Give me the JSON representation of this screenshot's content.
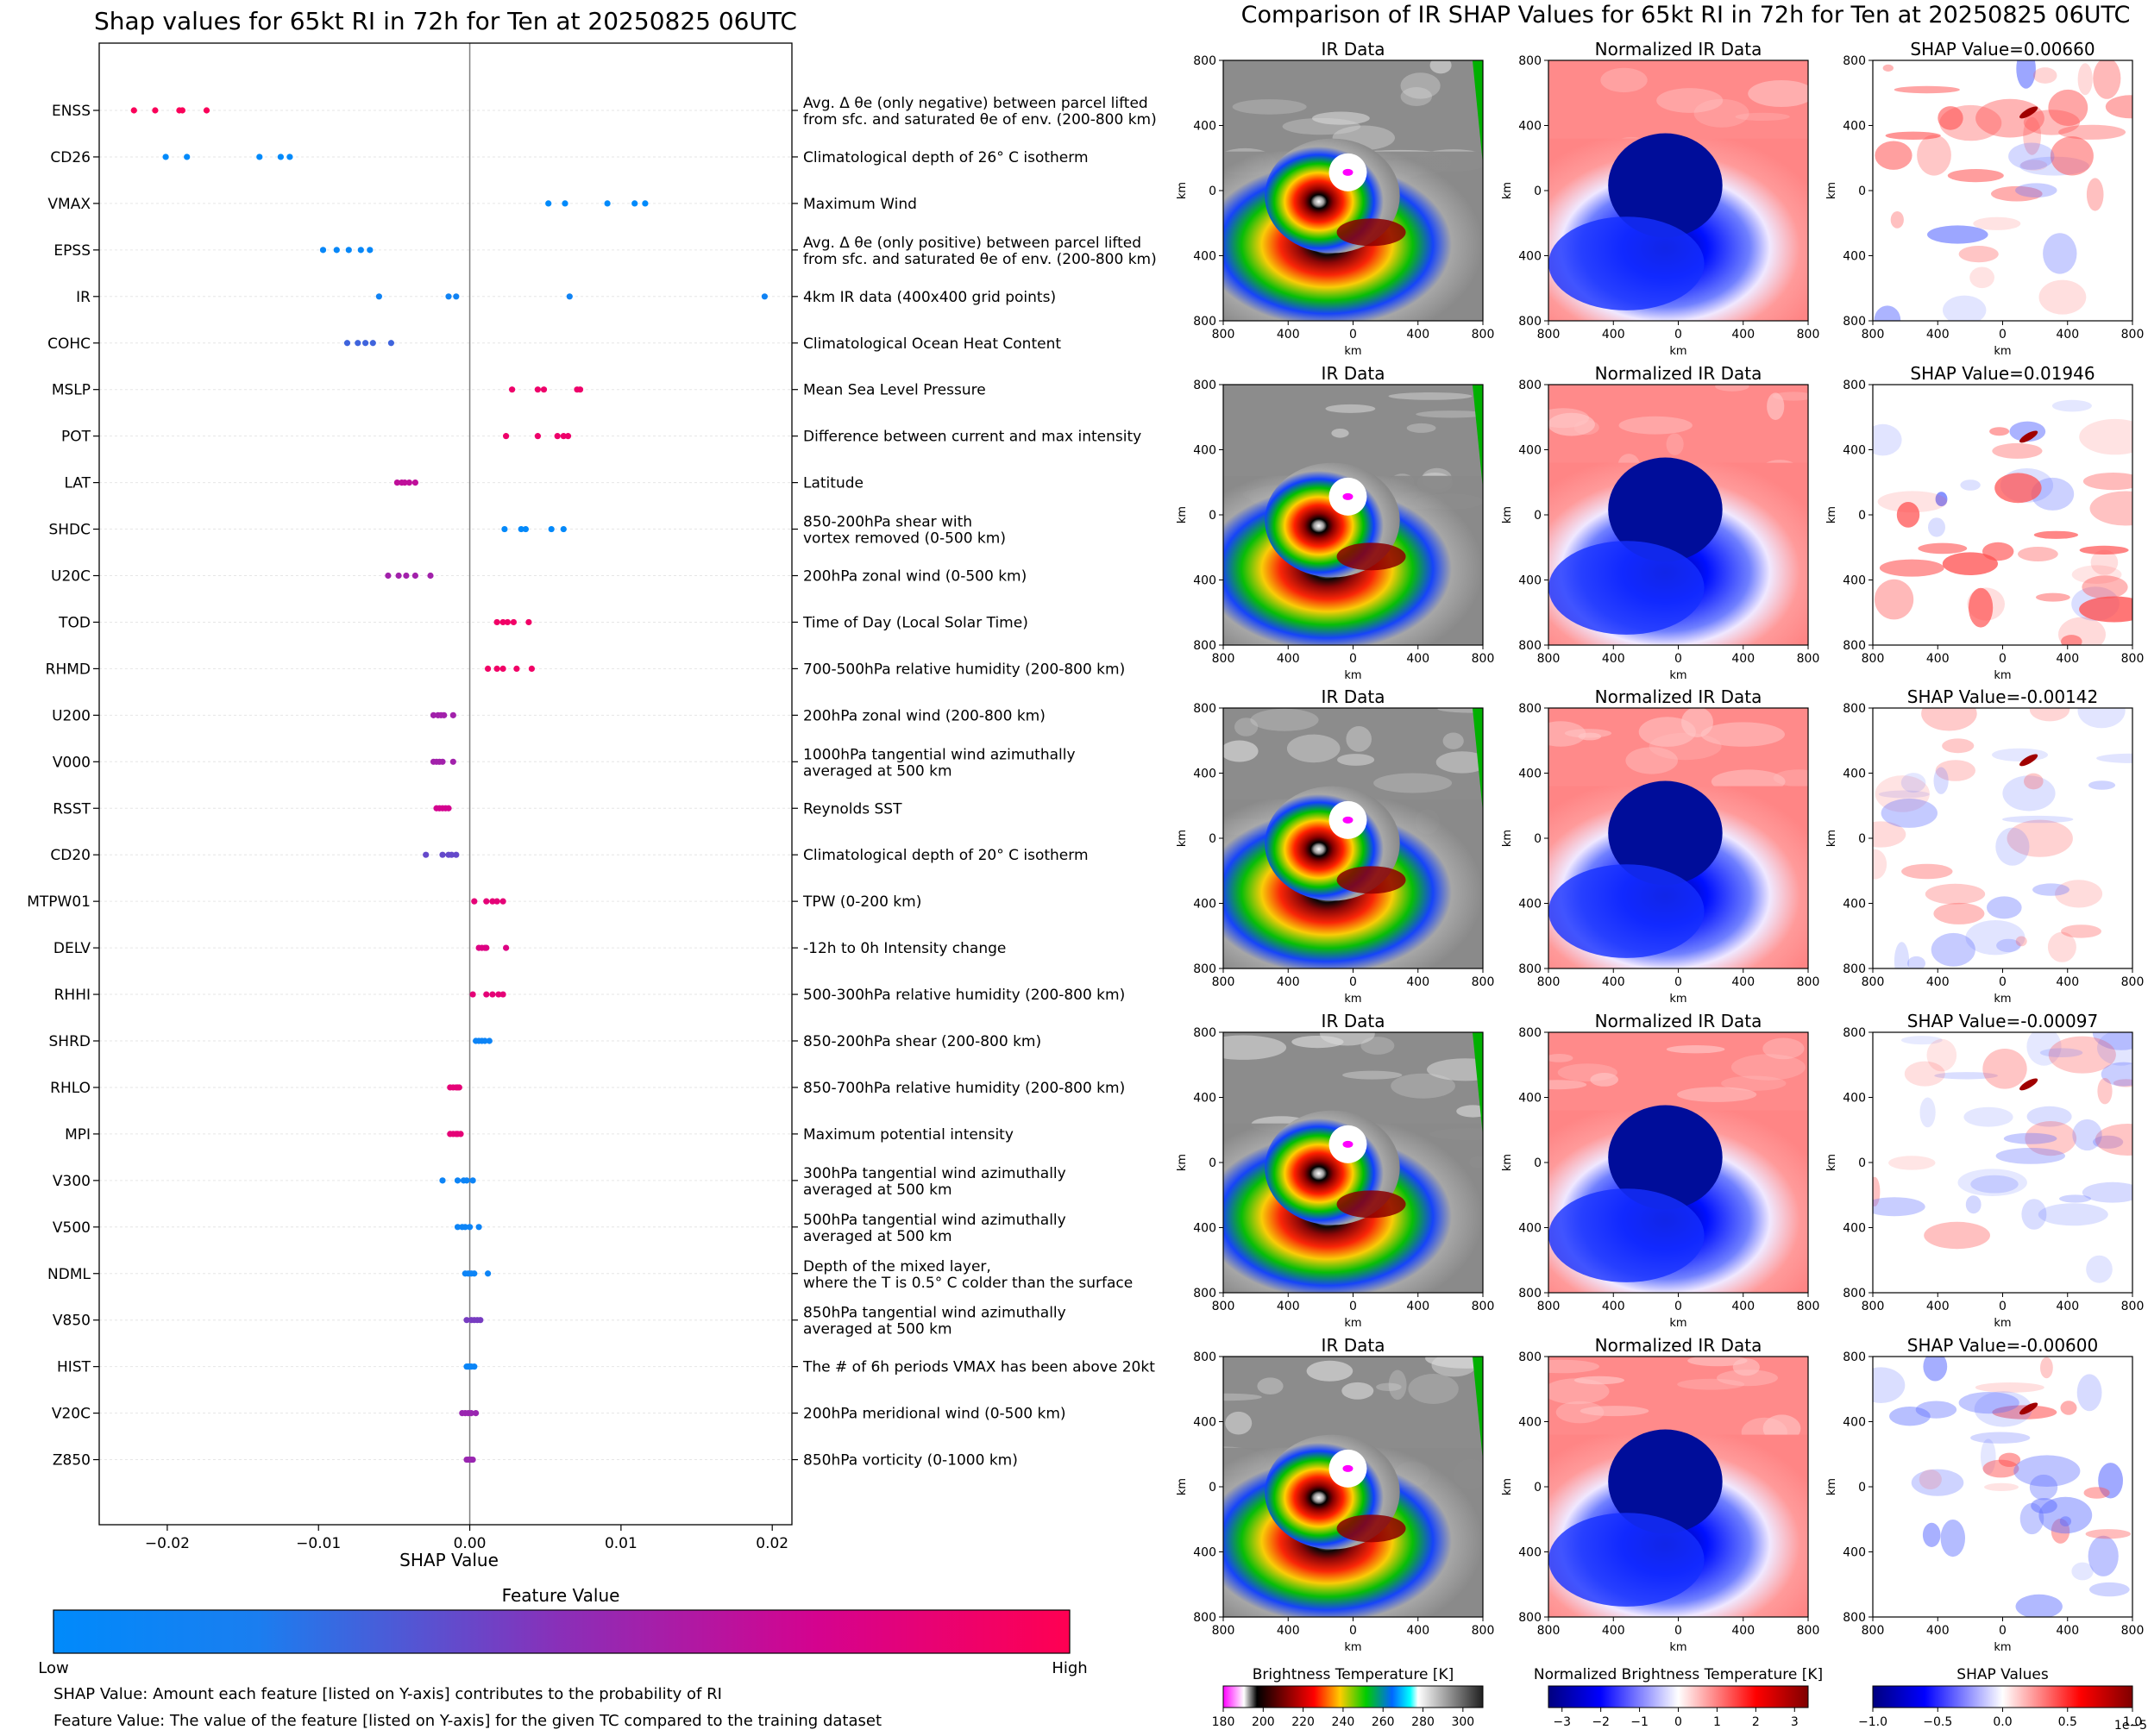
{
  "colors": {
    "feature_low": "#008afb",
    "feature_high": "#ff0052",
    "gridline": "#e6e6e6",
    "axis": "#000000",
    "zero_line": "#808080"
  },
  "left_panel": {
    "title": "Shap values for 65kt RI in 72h for Ten at 20250825 06UTC",
    "xlabel": "SHAP Value",
    "colorbar_title": "Feature Value",
    "colorbar_low": "Low",
    "colorbar_high": "High",
    "note_shap": "SHAP Value: Amount each feature [listed on Y-axis] contributes to the probability of RI",
    "note_feature": "Feature Value: The value of the feature [listed on Y-axis] for the given TC compared to the training dataset"
  },
  "right_panel": {
    "title": "Comparison of IR SHAP Values for 65kt RI in 72h for Ten at 20250825 06UTC",
    "col_ir": "IR Data",
    "col_norm": "Normalized IR Data",
    "axis_label": "km",
    "ticks": [
      "800",
      "400",
      "0",
      "400",
      "800"
    ],
    "shap_titles": [
      "SHAP Value=0.00660",
      "SHAP Value=0.01946",
      "SHAP Value=-0.00142",
      "SHAP Value=-0.00097",
      "SHAP Value=-0.00600"
    ],
    "cbar_ir": {
      "title": "Brightness Temperature [K]",
      "ticks": [
        "180",
        "200",
        "220",
        "240",
        "260",
        "280",
        "300"
      ]
    },
    "cbar_norm": {
      "title": "Normalized Brightness Temperature [K]",
      "ticks": [
        "−3",
        "−2",
        "−1",
        "0",
        "1",
        "2",
        "3"
      ]
    },
    "cbar_shap": {
      "title": "SHAP Values",
      "ticks": [
        "−1.0",
        "−0.5",
        "0.0",
        "0.5",
        "1.0"
      ],
      "offset": "1e−5"
    }
  },
  "chart_data": [
    {
      "type": "scatter",
      "title": "Shap values for 65kt RI in 72h for Ten at 20250825 06UTC",
      "xlabel": "SHAP Value",
      "xlim": [
        -0.0245,
        0.0213
      ],
      "xticks": [
        -0.02,
        -0.01,
        0.0,
        0.01,
        0.02
      ],
      "xtick_labels": [
        "−0.02",
        "−0.01",
        "0.00",
        "0.01",
        "0.02"
      ],
      "features": [
        {
          "name": "ENSS",
          "desc": "Avg. Δ θe (only negative) between parcel lifted\nfrom sfc. and saturated θe of env. (200-800 km)",
          "fv": 0.97,
          "shap": [
            -0.0222,
            -0.0208,
            -0.0192,
            -0.019,
            -0.0174
          ]
        },
        {
          "name": "CD26",
          "desc": "Climatological depth of 26° C isotherm",
          "fv": 0.0,
          "shap": [
            -0.0201,
            -0.0187,
            -0.0139,
            -0.0125,
            -0.0119
          ]
        },
        {
          "name": "VMAX",
          "desc": "Maximum Wind",
          "fv": 0.0,
          "shap": [
            0.0052,
            0.0063,
            0.0091,
            0.0109,
            0.0116
          ]
        },
        {
          "name": "EPSS",
          "desc": "Avg. Δ θe (only positive) between parcel lifted\nfrom sfc. and saturated θe of env. (200-800 km)",
          "fv": 0.05,
          "shap": [
            -0.0097,
            -0.0088,
            -0.008,
            -0.0072,
            -0.0066
          ]
        },
        {
          "name": "IR",
          "desc": "4km IR data (400x400 grid points)",
          "fv": 0.12,
          "shap": [
            -0.006,
            -0.0014,
            -0.0009,
            0.0066,
            0.0195
          ]
        },
        {
          "name": "COHC",
          "desc": "Climatological Ocean Heat Content",
          "fv": 0.3,
          "shap": [
            -0.0081,
            -0.0074,
            -0.0069,
            -0.0064,
            -0.0052
          ]
        },
        {
          "name": "MSLP",
          "desc": "Mean Sea Level Pressure",
          "fv": 0.9,
          "shap": [
            0.0028,
            0.0045,
            0.0049,
            0.0071,
            0.0073
          ]
        },
        {
          "name": "POT",
          "desc": "Difference between current and max intensity",
          "fv": 0.9,
          "shap": [
            0.0024,
            0.0045,
            0.0058,
            0.0062,
            0.0065
          ]
        },
        {
          "name": "LAT",
          "desc": "Latitude",
          "fv": 0.68,
          "shap": [
            -0.0048,
            -0.0045,
            -0.0043,
            -0.004,
            -0.0036
          ]
        },
        {
          "name": "SHDC",
          "desc": "850-200hPa shear with\nvortex removed (0-500 km)",
          "fv": 0.02,
          "shap": [
            0.0023,
            0.0034,
            0.0037,
            0.0054,
            0.0062
          ]
        },
        {
          "name": "U20C",
          "desc": "200hPa zonal wind (0-500 km)",
          "fv": 0.58,
          "shap": [
            -0.0054,
            -0.0047,
            -0.0042,
            -0.0036,
            -0.0026
          ]
        },
        {
          "name": "TOD",
          "desc": "Time of Day (Local Solar Time)",
          "fv": 0.92,
          "shap": [
            0.0018,
            0.0022,
            0.0025,
            0.0029,
            0.0039
          ]
        },
        {
          "name": "RHMD",
          "desc": "700-500hPa relative humidity (200-800 km)",
          "fv": 0.92,
          "shap": [
            0.0012,
            0.0018,
            0.0022,
            0.0031,
            0.0041
          ]
        },
        {
          "name": "U200",
          "desc": "200hPa zonal wind (200-800 km)",
          "fv": 0.58,
          "shap": [
            -0.0024,
            -0.0021,
            -0.0019,
            -0.0017,
            -0.0011
          ]
        },
        {
          "name": "V000",
          "desc": "1000hPa tangential wind azimuthally\naveraged at 500 km",
          "fv": 0.58,
          "shap": [
            -0.0024,
            -0.0022,
            -0.002,
            -0.0018,
            -0.0011
          ]
        },
        {
          "name": "RSST",
          "desc": "Reynolds SST",
          "fv": 0.75,
          "shap": [
            -0.0022,
            -0.002,
            -0.0018,
            -0.0016,
            -0.0014
          ]
        },
        {
          "name": "CD20",
          "desc": "Climatological depth of 20° C isotherm",
          "fv": 0.4,
          "shap": [
            -0.0029,
            -0.0018,
            -0.0014,
            -0.0012,
            -0.0009
          ]
        },
        {
          "name": "MTPW01",
          "desc": "TPW (0-200 km)",
          "fv": 0.85,
          "shap": [
            0.0003,
            0.0011,
            0.0015,
            0.0018,
            0.0022
          ]
        },
        {
          "name": "DELV",
          "desc": "-12h to 0h Intensity change",
          "fv": 0.8,
          "shap": [
            0.0006,
            0.0008,
            0.001,
            0.0011,
            0.0024
          ]
        },
        {
          "name": "RHHI",
          "desc": "500-300hPa relative humidity (200-800 km)",
          "fv": 0.85,
          "shap": [
            0.0002,
            0.0011,
            0.0015,
            0.0019,
            0.0022
          ]
        },
        {
          "name": "SHRD",
          "desc": "850-200hPa shear (200-800 km)",
          "fv": 0.1,
          "shap": [
            0.0004,
            0.0006,
            0.0008,
            0.001,
            0.0013
          ]
        },
        {
          "name": "RHLO",
          "desc": "850-700hPa relative humidity (200-800 km)",
          "fv": 0.85,
          "shap": [
            -0.0013,
            -0.0011,
            -0.0009,
            -0.0008,
            -0.0007
          ]
        },
        {
          "name": "MPI",
          "desc": "Maximum potential intensity",
          "fv": 0.85,
          "shap": [
            -0.0013,
            -0.0011,
            -0.0009,
            -0.0008,
            -0.0006
          ]
        },
        {
          "name": "V300",
          "desc": "300hPa tangential wind azimuthally\naveraged at 500 km",
          "fv": 0.1,
          "shap": [
            -0.0018,
            -0.0008,
            -0.0004,
            -0.0002,
            0.0002
          ]
        },
        {
          "name": "V500",
          "desc": "500hPa tangential wind azimuthally\naveraged at 500 km",
          "fv": 0.1,
          "shap": [
            -0.0008,
            -0.0005,
            -0.0003,
            0.0,
            0.0006
          ]
        },
        {
          "name": "NDML",
          "desc": "Depth of the mixed layer,\nwhere the T is 0.5° C colder than the surface",
          "fv": 0.1,
          "shap": [
            -0.0003,
            -0.0001,
            0.0001,
            0.0003,
            0.0012
          ]
        },
        {
          "name": "V850",
          "desc": "850hPa tangential wind azimuthally\naveraged at 500 km",
          "fv": 0.45,
          "shap": [
            -0.0002,
            0.0001,
            0.0003,
            0.0005,
            0.0007
          ]
        },
        {
          "name": "HIST",
          "desc": "The # of 6h periods VMAX has been above 20kt",
          "fv": 0.08,
          "shap": [
            -0.0002,
            -0.0001,
            0.0,
            0.0001,
            0.0003
          ]
        },
        {
          "name": "V20C",
          "desc": "200hPa meridional wind (0-500 km)",
          "fv": 0.55,
          "shap": [
            -0.0005,
            -0.0003,
            -0.0001,
            0.0001,
            0.0004
          ]
        },
        {
          "name": "Z850",
          "desc": "850hPa vorticity (0-1000 km)",
          "fv": 0.55,
          "shap": [
            -0.0002,
            -0.0001,
            0.0,
            0.0001,
            0.0002
          ]
        }
      ]
    },
    {
      "type": "heatmap",
      "title": "Comparison of IR SHAP Values for 65kt RI in 72h for Ten at 20250825 06UTC",
      "rows": 5,
      "columns": [
        "IR Data",
        "Normalized IR Data",
        "SHAP Value"
      ],
      "shap_values": [
        0.0066,
        0.01946,
        -0.00142,
        -0.00097,
        -0.006
      ],
      "xlabel": "km",
      "ylabel": "km",
      "xlim": [
        -800,
        800
      ],
      "ylim": [
        -800,
        800
      ]
    }
  ]
}
